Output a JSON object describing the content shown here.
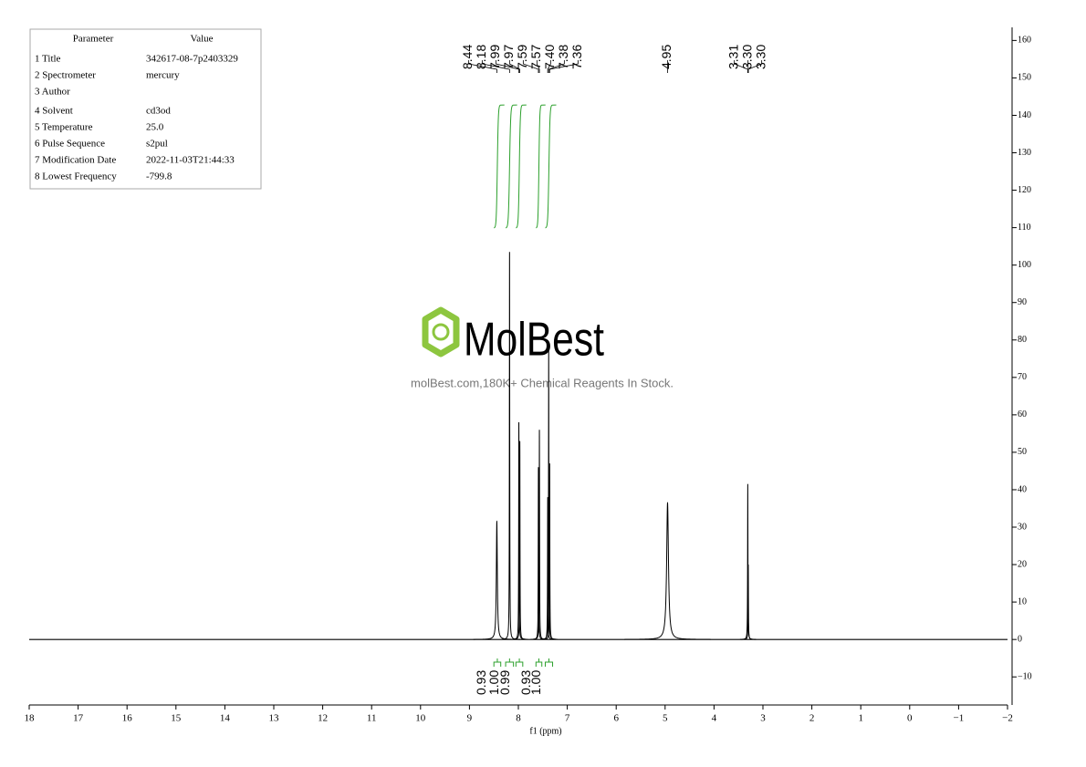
{
  "parameters": {
    "header": [
      "Parameter",
      "Value"
    ],
    "rows": [
      [
        "1 Title",
        "342617-08-7p2403329"
      ],
      [
        "2 Spectrometer",
        "mercury"
      ],
      [
        "3 Author",
        ""
      ],
      [
        "4 Solvent",
        "cd3od"
      ],
      [
        "5 Temperature",
        "25.0"
      ],
      [
        "6 Pulse Sequence",
        "s2pul"
      ],
      [
        "7 Modification Date",
        "2022-11-03T21:44:33"
      ],
      [
        "8 Lowest Frequency",
        "-799.8"
      ]
    ]
  },
  "watermark": {
    "brand": "MolBest",
    "tagline": "molBest.com,180K+ Chemical Reagents In Stock."
  },
  "chart_data": {
    "type": "nmr",
    "x_label": "f1 (ppm)",
    "xlim": [
      18,
      -2
    ],
    "xticks": [
      18,
      17,
      16,
      15,
      14,
      13,
      12,
      11,
      10,
      9,
      8,
      7,
      6,
      5,
      4,
      3,
      2,
      1,
      0,
      {
        "value": -1,
        "label": "−1"
      },
      {
        "value": -2,
        "label": "−2"
      }
    ],
    "ylim": [
      -17.5,
      163.5
    ],
    "yticks": [
      {
        "value": -10,
        "label": "−10"
      },
      0,
      10,
      20,
      30,
      40,
      50,
      60,
      70,
      80,
      90,
      100,
      110,
      120,
      130,
      140,
      150,
      160
    ],
    "color": "#000000",
    "integral_color": "#2ca02c",
    "peaks": [
      {
        "ppm": 8.44,
        "height": 31.5,
        "width": 0.012
      },
      {
        "ppm": 8.18,
        "height": 103.5,
        "width": 0.004
      },
      {
        "ppm": 7.99,
        "height": 58,
        "width": 0.004
      },
      {
        "ppm": 7.97,
        "height": 53,
        "width": 0.004
      },
      {
        "ppm": 7.59,
        "height": 46,
        "width": 0.004
      },
      {
        "ppm": 7.57,
        "height": 56,
        "width": 0.004
      },
      {
        "ppm": 7.4,
        "height": 38,
        "width": 0.004
      },
      {
        "ppm": 7.38,
        "height": 78,
        "width": 0.004
      },
      {
        "ppm": 7.36,
        "height": 47,
        "width": 0.004
      },
      {
        "ppm": 4.95,
        "height": 36.5,
        "width": 0.022
      },
      {
        "ppm": 3.31,
        "height": 41.5,
        "width": 0.004
      },
      {
        "ppm": 3.3,
        "height": 20,
        "width": 0.004
      }
    ],
    "peak_labels": [
      [
        "8.44",
        "8.18",
        "7.99",
        "7.97",
        "7.59",
        "7.57",
        "7.40",
        "7.38",
        "7.36"
      ],
      [
        "4.95"
      ],
      [
        "3.31",
        "3.30",
        "3.30"
      ]
    ],
    "integrals": [
      {
        "from": 8.5,
        "to": 8.36,
        "label": "0.93"
      },
      {
        "from": 8.26,
        "to": 8.1,
        "label": "1.00"
      },
      {
        "from": 8.05,
        "to": 7.91,
        "label": "0.99"
      },
      {
        "from": 7.64,
        "to": 7.52,
        "label": "0.93"
      },
      {
        "from": 7.45,
        "to": 7.3,
        "label": "1.00"
      }
    ]
  }
}
